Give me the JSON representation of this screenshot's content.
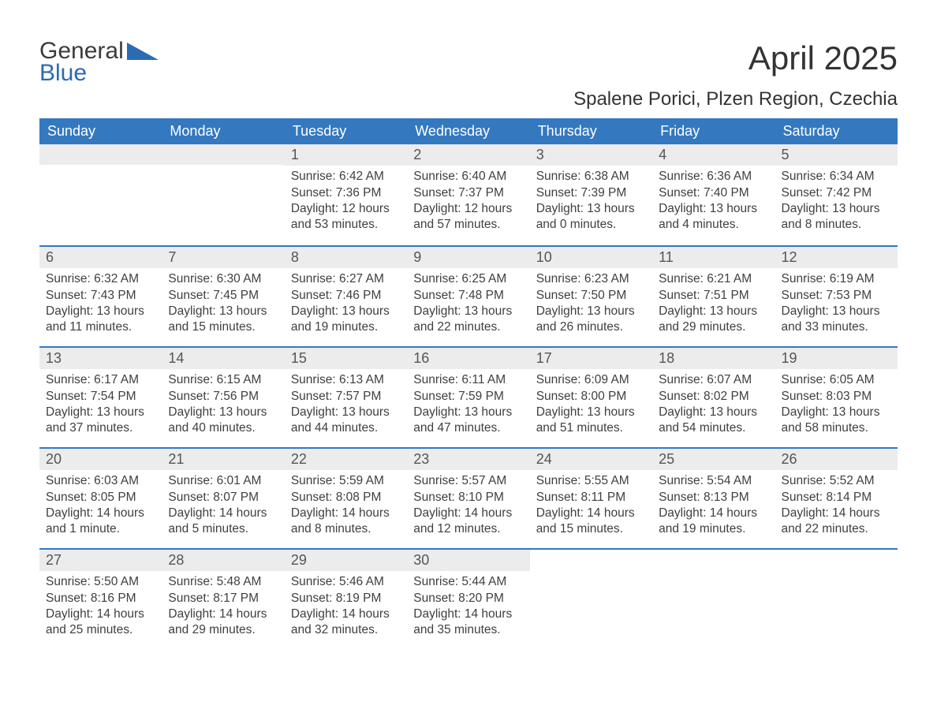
{
  "logo": {
    "line1": "General",
    "line2": "Blue"
  },
  "month_title": "April 2025",
  "location": "Spalene Porici, Plzen Region, Czechia",
  "colors": {
    "header_bg": "#3478c0",
    "header_text": "#ffffff",
    "daynum_bg": "#ececec",
    "row_border": "#3478c0",
    "text": "#333333",
    "logo_blue": "#2a6bb4"
  },
  "weekdays": [
    "Sunday",
    "Monday",
    "Tuesday",
    "Wednesday",
    "Thursday",
    "Friday",
    "Saturday"
  ],
  "weeks": [
    [
      {
        "empty": true
      },
      {
        "empty": true
      },
      {
        "day": "1",
        "sunrise": "Sunrise: 6:42 AM",
        "sunset": "Sunset: 7:36 PM",
        "daylight1": "Daylight: 12 hours",
        "daylight2": "and 53 minutes."
      },
      {
        "day": "2",
        "sunrise": "Sunrise: 6:40 AM",
        "sunset": "Sunset: 7:37 PM",
        "daylight1": "Daylight: 12 hours",
        "daylight2": "and 57 minutes."
      },
      {
        "day": "3",
        "sunrise": "Sunrise: 6:38 AM",
        "sunset": "Sunset: 7:39 PM",
        "daylight1": "Daylight: 13 hours",
        "daylight2": "and 0 minutes."
      },
      {
        "day": "4",
        "sunrise": "Sunrise: 6:36 AM",
        "sunset": "Sunset: 7:40 PM",
        "daylight1": "Daylight: 13 hours",
        "daylight2": "and 4 minutes."
      },
      {
        "day": "5",
        "sunrise": "Sunrise: 6:34 AM",
        "sunset": "Sunset: 7:42 PM",
        "daylight1": "Daylight: 13 hours",
        "daylight2": "and 8 minutes."
      }
    ],
    [
      {
        "day": "6",
        "sunrise": "Sunrise: 6:32 AM",
        "sunset": "Sunset: 7:43 PM",
        "daylight1": "Daylight: 13 hours",
        "daylight2": "and 11 minutes."
      },
      {
        "day": "7",
        "sunrise": "Sunrise: 6:30 AM",
        "sunset": "Sunset: 7:45 PM",
        "daylight1": "Daylight: 13 hours",
        "daylight2": "and 15 minutes."
      },
      {
        "day": "8",
        "sunrise": "Sunrise: 6:27 AM",
        "sunset": "Sunset: 7:46 PM",
        "daylight1": "Daylight: 13 hours",
        "daylight2": "and 19 minutes."
      },
      {
        "day": "9",
        "sunrise": "Sunrise: 6:25 AM",
        "sunset": "Sunset: 7:48 PM",
        "daylight1": "Daylight: 13 hours",
        "daylight2": "and 22 minutes."
      },
      {
        "day": "10",
        "sunrise": "Sunrise: 6:23 AM",
        "sunset": "Sunset: 7:50 PM",
        "daylight1": "Daylight: 13 hours",
        "daylight2": "and 26 minutes."
      },
      {
        "day": "11",
        "sunrise": "Sunrise: 6:21 AM",
        "sunset": "Sunset: 7:51 PM",
        "daylight1": "Daylight: 13 hours",
        "daylight2": "and 29 minutes."
      },
      {
        "day": "12",
        "sunrise": "Sunrise: 6:19 AM",
        "sunset": "Sunset: 7:53 PM",
        "daylight1": "Daylight: 13 hours",
        "daylight2": "and 33 minutes."
      }
    ],
    [
      {
        "day": "13",
        "sunrise": "Sunrise: 6:17 AM",
        "sunset": "Sunset: 7:54 PM",
        "daylight1": "Daylight: 13 hours",
        "daylight2": "and 37 minutes."
      },
      {
        "day": "14",
        "sunrise": "Sunrise: 6:15 AM",
        "sunset": "Sunset: 7:56 PM",
        "daylight1": "Daylight: 13 hours",
        "daylight2": "and 40 minutes."
      },
      {
        "day": "15",
        "sunrise": "Sunrise: 6:13 AM",
        "sunset": "Sunset: 7:57 PM",
        "daylight1": "Daylight: 13 hours",
        "daylight2": "and 44 minutes."
      },
      {
        "day": "16",
        "sunrise": "Sunrise: 6:11 AM",
        "sunset": "Sunset: 7:59 PM",
        "daylight1": "Daylight: 13 hours",
        "daylight2": "and 47 minutes."
      },
      {
        "day": "17",
        "sunrise": "Sunrise: 6:09 AM",
        "sunset": "Sunset: 8:00 PM",
        "daylight1": "Daylight: 13 hours",
        "daylight2": "and 51 minutes."
      },
      {
        "day": "18",
        "sunrise": "Sunrise: 6:07 AM",
        "sunset": "Sunset: 8:02 PM",
        "daylight1": "Daylight: 13 hours",
        "daylight2": "and 54 minutes."
      },
      {
        "day": "19",
        "sunrise": "Sunrise: 6:05 AM",
        "sunset": "Sunset: 8:03 PM",
        "daylight1": "Daylight: 13 hours",
        "daylight2": "and 58 minutes."
      }
    ],
    [
      {
        "day": "20",
        "sunrise": "Sunrise: 6:03 AM",
        "sunset": "Sunset: 8:05 PM",
        "daylight1": "Daylight: 14 hours",
        "daylight2": "and 1 minute."
      },
      {
        "day": "21",
        "sunrise": "Sunrise: 6:01 AM",
        "sunset": "Sunset: 8:07 PM",
        "daylight1": "Daylight: 14 hours",
        "daylight2": "and 5 minutes."
      },
      {
        "day": "22",
        "sunrise": "Sunrise: 5:59 AM",
        "sunset": "Sunset: 8:08 PM",
        "daylight1": "Daylight: 14 hours",
        "daylight2": "and 8 minutes."
      },
      {
        "day": "23",
        "sunrise": "Sunrise: 5:57 AM",
        "sunset": "Sunset: 8:10 PM",
        "daylight1": "Daylight: 14 hours",
        "daylight2": "and 12 minutes."
      },
      {
        "day": "24",
        "sunrise": "Sunrise: 5:55 AM",
        "sunset": "Sunset: 8:11 PM",
        "daylight1": "Daylight: 14 hours",
        "daylight2": "and 15 minutes."
      },
      {
        "day": "25",
        "sunrise": "Sunrise: 5:54 AM",
        "sunset": "Sunset: 8:13 PM",
        "daylight1": "Daylight: 14 hours",
        "daylight2": "and 19 minutes."
      },
      {
        "day": "26",
        "sunrise": "Sunrise: 5:52 AM",
        "sunset": "Sunset: 8:14 PM",
        "daylight1": "Daylight: 14 hours",
        "daylight2": "and 22 minutes."
      }
    ],
    [
      {
        "day": "27",
        "sunrise": "Sunrise: 5:50 AM",
        "sunset": "Sunset: 8:16 PM",
        "daylight1": "Daylight: 14 hours",
        "daylight2": "and 25 minutes."
      },
      {
        "day": "28",
        "sunrise": "Sunrise: 5:48 AM",
        "sunset": "Sunset: 8:17 PM",
        "daylight1": "Daylight: 14 hours",
        "daylight2": "and 29 minutes."
      },
      {
        "day": "29",
        "sunrise": "Sunrise: 5:46 AM",
        "sunset": "Sunset: 8:19 PM",
        "daylight1": "Daylight: 14 hours",
        "daylight2": "and 32 minutes."
      },
      {
        "day": "30",
        "sunrise": "Sunrise: 5:44 AM",
        "sunset": "Sunset: 8:20 PM",
        "daylight1": "Daylight: 14 hours",
        "daylight2": "and 35 minutes."
      },
      {
        "empty": true,
        "nobar": true
      },
      {
        "empty": true,
        "nobar": true
      },
      {
        "empty": true,
        "nobar": true
      }
    ]
  ]
}
